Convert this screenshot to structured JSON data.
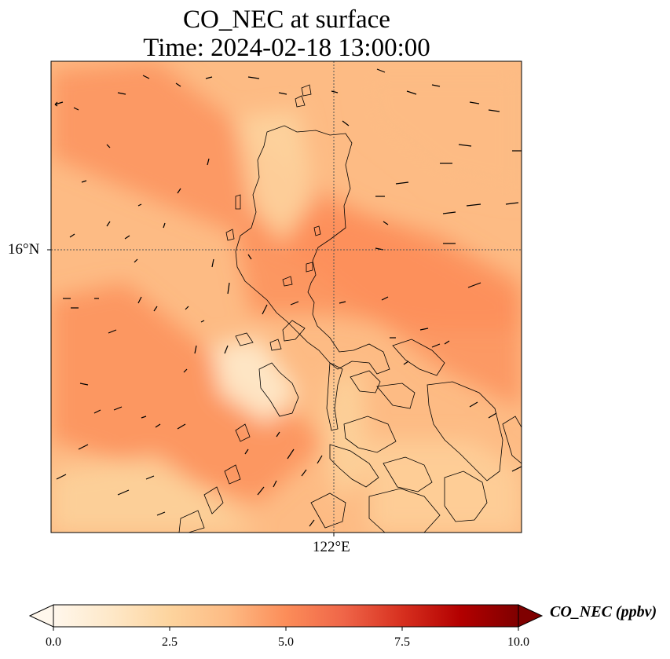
{
  "title": {
    "line1": "CO_NEC at surface",
    "line2": "Time: 2024-02-18 13:00:00"
  },
  "map": {
    "lat_label": "16°N",
    "lon_label": "122°E",
    "colormap": "OrRd",
    "field": "CO_NEC",
    "gridlines": "dotted"
  },
  "colorbar": {
    "label": "CO_NEC (ppbv)",
    "ticks": [
      "0.0",
      "2.5",
      "5.0",
      "7.5",
      "10.0"
    ],
    "range": [
      0,
      10
    ],
    "extend": "both",
    "colors": [
      "#fff7ec",
      "#fee8c8",
      "#fdd49e",
      "#fdbb84",
      "#fc8d59",
      "#ef6548",
      "#d7301f",
      "#b30000",
      "#7f0000"
    ]
  }
}
